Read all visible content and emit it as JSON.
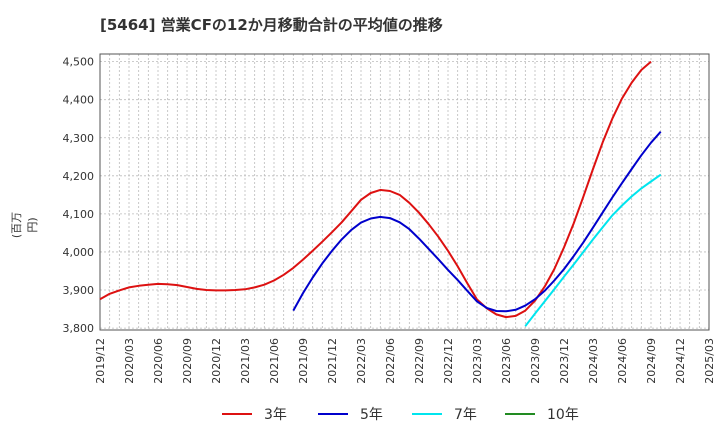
{
  "chart_data": {
    "type": "line",
    "title": "[5464]  営業CFの12か月移動合計の平均値の推移",
    "ylabel": "(百万円)",
    "xlabel": "",
    "x_ticks": [
      "2019/12",
      "2020/03",
      "2020/06",
      "2020/09",
      "2020/12",
      "2021/03",
      "2021/06",
      "2021/09",
      "2021/12",
      "2022/03",
      "2022/06",
      "2022/09",
      "2022/12",
      "2023/03",
      "2023/06",
      "2023/09",
      "2023/12",
      "2024/03",
      "2024/06",
      "2024/09",
      "2024/12",
      "2025/03"
    ],
    "y_ticks": [
      3800,
      3900,
      4000,
      4100,
      4200,
      4300,
      4400,
      4500
    ],
    "y_tick_labels": [
      "3,800",
      "3,900",
      "4,000",
      "4,100",
      "4,200",
      "4,300",
      "4,400",
      "4,500"
    ],
    "ylim": [
      3795,
      4520
    ],
    "grid": true,
    "legend_position": "bottom",
    "series": [
      {
        "name": "3年",
        "color": "#dd1111",
        "points": [
          [
            "2019/12",
            3876
          ],
          [
            "2020/01",
            3890
          ],
          [
            "2020/02",
            3899
          ],
          [
            "2020/03",
            3907
          ],
          [
            "2020/04",
            3911
          ],
          [
            "2020/05",
            3914
          ],
          [
            "2020/06",
            3916
          ],
          [
            "2020/07",
            3915
          ],
          [
            "2020/08",
            3913
          ],
          [
            "2020/09",
            3908
          ],
          [
            "2020/10",
            3903
          ],
          [
            "2020/11",
            3900
          ],
          [
            "2020/12",
            3899
          ],
          [
            "2021/01",
            3899
          ],
          [
            "2021/02",
            3900
          ],
          [
            "2021/03",
            3902
          ],
          [
            "2021/04",
            3907
          ],
          [
            "2021/05",
            3914
          ],
          [
            "2021/06",
            3925
          ],
          [
            "2021/07",
            3940
          ],
          [
            "2021/08",
            3958
          ],
          [
            "2021/09",
            3980
          ],
          [
            "2021/10",
            4003
          ],
          [
            "2021/11",
            4027
          ],
          [
            "2021/12",
            4052
          ],
          [
            "2022/01",
            4078
          ],
          [
            "2022/02",
            4107
          ],
          [
            "2022/03",
            4137
          ],
          [
            "2022/04",
            4155
          ],
          [
            "2022/05",
            4163
          ],
          [
            "2022/06",
            4160
          ],
          [
            "2022/07",
            4150
          ],
          [
            "2022/08",
            4129
          ],
          [
            "2022/09",
            4103
          ],
          [
            "2022/10",
            4073
          ],
          [
            "2022/11",
            4040
          ],
          [
            "2022/12",
            4003
          ],
          [
            "2023/01",
            3962
          ],
          [
            "2023/02",
            3918
          ],
          [
            "2023/03",
            3875
          ],
          [
            "2023/04",
            3852
          ],
          [
            "2023/05",
            3836
          ],
          [
            "2023/06",
            3829
          ],
          [
            "2023/07",
            3832
          ],
          [
            "2023/08",
            3846
          ],
          [
            "2023/09",
            3872
          ],
          [
            "2023/10",
            3909
          ],
          [
            "2023/11",
            3955
          ],
          [
            "2023/12",
            4012
          ],
          [
            "2024/01",
            4075
          ],
          [
            "2024/02",
            4145
          ],
          [
            "2024/03",
            4218
          ],
          [
            "2024/04",
            4288
          ],
          [
            "2024/05",
            4350
          ],
          [
            "2024/06",
            4403
          ],
          [
            "2024/07",
            4445
          ],
          [
            "2024/08",
            4478
          ],
          [
            "2024/09",
            4500
          ]
        ]
      },
      {
        "name": "5年",
        "color": "#0000cc",
        "points": [
          [
            "2021/08",
            3846
          ],
          [
            "2021/09",
            3892
          ],
          [
            "2021/10",
            3933
          ],
          [
            "2021/11",
            3970
          ],
          [
            "2021/12",
            4003
          ],
          [
            "2022/01",
            4033
          ],
          [
            "2022/02",
            4058
          ],
          [
            "2022/03",
            4077
          ],
          [
            "2022/04",
            4088
          ],
          [
            "2022/05",
            4092
          ],
          [
            "2022/06",
            4089
          ],
          [
            "2022/07",
            4078
          ],
          [
            "2022/08",
            4060
          ],
          [
            "2022/09",
            4035
          ],
          [
            "2022/10",
            4008
          ],
          [
            "2022/11",
            3981
          ],
          [
            "2022/12",
            3953
          ],
          [
            "2023/01",
            3926
          ],
          [
            "2023/02",
            3898
          ],
          [
            "2023/03",
            3870
          ],
          [
            "2023/04",
            3853
          ],
          [
            "2023/05",
            3845
          ],
          [
            "2023/06",
            3844
          ],
          [
            "2023/07",
            3848
          ],
          [
            "2023/08",
            3859
          ],
          [
            "2023/09",
            3876
          ],
          [
            "2023/10",
            3898
          ],
          [
            "2023/11",
            3925
          ],
          [
            "2023/12",
            3955
          ],
          [
            "2024/01",
            3989
          ],
          [
            "2024/02",
            4025
          ],
          [
            "2024/03",
            4064
          ],
          [
            "2024/04",
            4104
          ],
          [
            "2024/05",
            4143
          ],
          [
            "2024/06",
            4181
          ],
          [
            "2024/07",
            4218
          ],
          [
            "2024/08",
            4254
          ],
          [
            "2024/09",
            4287
          ],
          [
            "2024/10",
            4316
          ]
        ]
      },
      {
        "name": "7年",
        "color": "#00e5ee",
        "points": [
          [
            "2023/08",
            3805
          ],
          [
            "2023/09",
            3838
          ],
          [
            "2023/10",
            3870
          ],
          [
            "2023/11",
            3902
          ],
          [
            "2023/12",
            3935
          ],
          [
            "2024/01",
            3967
          ],
          [
            "2024/02",
            4000
          ],
          [
            "2024/03",
            4033
          ],
          [
            "2024/04",
            4065
          ],
          [
            "2024/05",
            4096
          ],
          [
            "2024/06",
            4122
          ],
          [
            "2024/07",
            4146
          ],
          [
            "2024/08",
            4167
          ],
          [
            "2024/09",
            4185
          ],
          [
            "2024/10",
            4203
          ]
        ]
      },
      {
        "name": "10年",
        "color": "#228b22",
        "points": []
      }
    ]
  }
}
